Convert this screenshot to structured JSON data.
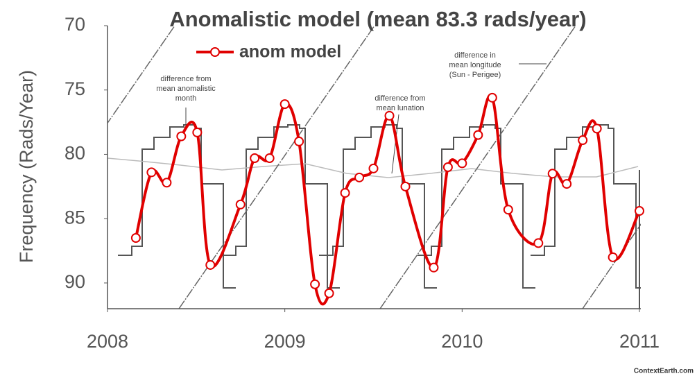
{
  "chart_data": {
    "type": "line",
    "title": "Anomalistic model (mean 83.3 rads/year)",
    "y_label": "Frequency (Rads/Year)",
    "xlim": [
      2008,
      2011
    ],
    "xticks": [
      2008,
      2009,
      2010,
      2011
    ],
    "ylim": [
      70,
      92
    ],
    "yticks": [
      70,
      75,
      80,
      85,
      90
    ],
    "y_inverted": true,
    "series": [
      {
        "name": "anom model",
        "color": "#e00000",
        "x": [
          2008.16,
          2008.248,
          2008.334,
          2008.416,
          2008.506,
          2008.58,
          2008.75,
          2008.83,
          2008.914,
          2009.0,
          2009.08,
          2009.17,
          2009.25,
          2009.34,
          2009.42,
          2009.5,
          2009.59,
          2009.68,
          2009.84,
          2009.92,
          2010.0,
          2010.09,
          2010.17,
          2010.26,
          2010.43,
          2010.51,
          2010.59,
          2010.68,
          2010.76,
          2010.85,
          2011.0
        ],
        "values": [
          86.5,
          81.4,
          82.2,
          78.6,
          78.3,
          88.6,
          83.9,
          80.3,
          80.3,
          76.1,
          79.0,
          90.1,
          90.8,
          83.0,
          81.8,
          81.1,
          77.0,
          82.5,
          88.8,
          81.0,
          80.7,
          78.5,
          75.6,
          84.3,
          86.9,
          81.5,
          82.3,
          78.9,
          78.0,
          88.0,
          84.4
        ]
      }
    ],
    "annotations": [
      "difference from",
      "mean anomalistic",
      "month",
      "difference in",
      "mean longitude",
      "(Sun - Perigee)",
      "difference from",
      "mean lunation"
    ],
    "credit": "ContextEarth.com"
  }
}
